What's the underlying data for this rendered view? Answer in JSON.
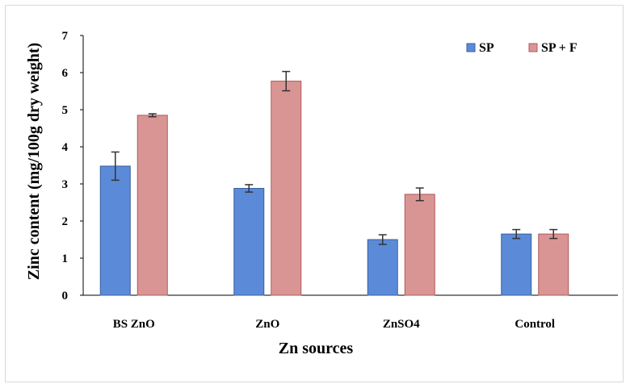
{
  "chart_data": {
    "type": "bar",
    "title": "",
    "xlabel": "Zn sources",
    "ylabel": "Zinc content (mg/100g dry weight)",
    "ylim": [
      0,
      7
    ],
    "yticks": [
      0,
      1,
      2,
      3,
      4,
      5,
      6,
      7
    ],
    "categories": [
      "BS ZnO",
      "ZnO",
      "ZnSO4",
      "Control"
    ],
    "series": [
      {
        "name": "SP",
        "values": [
          3.48,
          2.88,
          1.5,
          1.65
        ],
        "errors": [
          0.38,
          0.1,
          0.13,
          0.12
        ],
        "color": "#5b8bd8",
        "edge": "#3a5f9e"
      },
      {
        "name": "SP + F",
        "values": [
          4.85,
          5.77,
          2.72,
          1.65
        ],
        "errors": [
          0.04,
          0.26,
          0.17,
          0.12
        ],
        "color": "#d99594",
        "edge": "#b05a58"
      }
    ],
    "legend_position": "top-right",
    "grid": false
  }
}
